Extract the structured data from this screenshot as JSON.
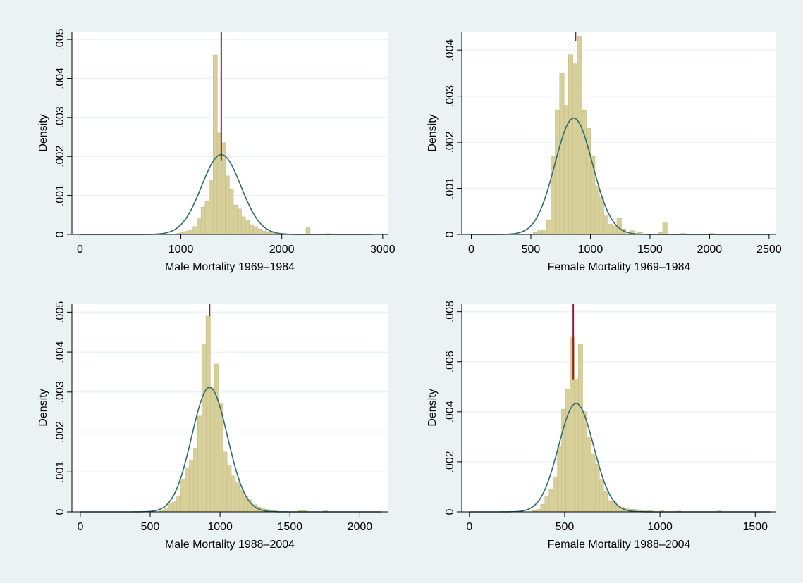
{
  "colors": {
    "outer_background": "#EAF2F3",
    "plot_background": "#FFFFFF",
    "gridline": "#EAF2F3",
    "bar_fill": "#D8D09A",
    "bar_stroke": "#C9C08A",
    "normal_curve": "#2E6B6A",
    "mean_line": "#A0182E"
  },
  "chart_data": [
    {
      "type": "bar",
      "xlabel": "Male Mortality 1969–1984",
      "ylabel": "Density",
      "xlim": [
        -80,
        3050
      ],
      "ylim": [
        0,
        0.0052
      ],
      "xticks": [
        0,
        1000,
        2000,
        3000
      ],
      "xtick_labels": [
        "0",
        "1000",
        "2000",
        "3000"
      ],
      "yticks": [
        0,
        0.001,
        0.002,
        0.003,
        0.004,
        0.005
      ],
      "ytick_labels": [
        "0",
        ".001",
        ".002",
        ".003",
        ".004",
        ".005"
      ],
      "grid": true,
      "bin_width": 40,
      "bins": [
        {
          "x0": 960,
          "value": 3e-05
        },
        {
          "x0": 1000,
          "value": 5e-05
        },
        {
          "x0": 1040,
          "value": 8e-05
        },
        {
          "x0": 1080,
          "value": 0.00012
        },
        {
          "x0": 1120,
          "value": 0.0002
        },
        {
          "x0": 1160,
          "value": 0.0004
        },
        {
          "x0": 1200,
          "value": 0.0007
        },
        {
          "x0": 1240,
          "value": 0.00085
        },
        {
          "x0": 1280,
          "value": 0.0014
        },
        {
          "x0": 1320,
          "value": 0.0046
        },
        {
          "x0": 1360,
          "value": 0.0026
        },
        {
          "x0": 1400,
          "value": 0.00235
        },
        {
          "x0": 1440,
          "value": 0.0015
        },
        {
          "x0": 1480,
          "value": 0.00115
        },
        {
          "x0": 1520,
          "value": 0.00075
        },
        {
          "x0": 1560,
          "value": 0.00065
        },
        {
          "x0": 1600,
          "value": 0.00045
        },
        {
          "x0": 1640,
          "value": 0.00035
        },
        {
          "x0": 1680,
          "value": 0.00025
        },
        {
          "x0": 1720,
          "value": 0.0002
        },
        {
          "x0": 1760,
          "value": 0.00014
        },
        {
          "x0": 1800,
          "value": 9e-05
        },
        {
          "x0": 1840,
          "value": 7e-05
        },
        {
          "x0": 1880,
          "value": 5e-05
        },
        {
          "x0": 1920,
          "value": 4e-05
        },
        {
          "x0": 1960,
          "value": 3e-05
        },
        {
          "x0": 2000,
          "value": 2e-05
        },
        {
          "x0": 2240,
          "value": 0.00017
        },
        {
          "x0": 2440,
          "value": 2e-05
        }
      ],
      "normal_curve": {
        "mean": 1400,
        "sd": 195,
        "x_range": [
          0,
          2900
        ]
      },
      "mean_line": {
        "x": 1400,
        "y_top": 0.0052,
        "y_bottom": 0.0019
      }
    },
    {
      "type": "bar",
      "xlabel": "Female Mortality 1969–1984",
      "ylabel": "Density",
      "xlim": [
        -80,
        2560
      ],
      "ylim": [
        0,
        0.0044
      ],
      "xticks": [
        0,
        500,
        1000,
        1500,
        2000,
        2500
      ],
      "xtick_labels": [
        "0",
        "500",
        "1000",
        "1500",
        "2000",
        "2500"
      ],
      "yticks": [
        0,
        0.001,
        0.002,
        0.003,
        0.004
      ],
      "ytick_labels": [
        "0",
        ".001",
        ".002",
        ".003",
        ".004"
      ],
      "grid": true,
      "bin_width": 37,
      "bins": [
        {
          "x0": 520,
          "value": 4e-05
        },
        {
          "x0": 557,
          "value": 8e-05
        },
        {
          "x0": 594,
          "value": 0.0001
        },
        {
          "x0": 631,
          "value": 0.0003
        },
        {
          "x0": 668,
          "value": 0.0017
        },
        {
          "x0": 705,
          "value": 0.0027
        },
        {
          "x0": 742,
          "value": 0.0035
        },
        {
          "x0": 779,
          "value": 0.0028
        },
        {
          "x0": 816,
          "value": 0.0039
        },
        {
          "x0": 853,
          "value": 0.0037
        },
        {
          "x0": 890,
          "value": 0.0043
        },
        {
          "x0": 927,
          "value": 0.0027
        },
        {
          "x0": 964,
          "value": 0.0023
        },
        {
          "x0": 1001,
          "value": 0.0017
        },
        {
          "x0": 1038,
          "value": 0.00105
        },
        {
          "x0": 1075,
          "value": 0.0008
        },
        {
          "x0": 1112,
          "value": 0.0004
        },
        {
          "x0": 1149,
          "value": 0.00022
        },
        {
          "x0": 1186,
          "value": 0.00018
        },
        {
          "x0": 1223,
          "value": 0.00035
        },
        {
          "x0": 1260,
          "value": 0.00012
        },
        {
          "x0": 1330,
          "value": 8e-05
        },
        {
          "x0": 1400,
          "value": 4e-05
        },
        {
          "x0": 1570,
          "value": 4e-05
        },
        {
          "x0": 1607,
          "value": 0.00025
        },
        {
          "x0": 1760,
          "value": 2e-05
        },
        {
          "x0": 2000,
          "value": 2e-05
        }
      ],
      "normal_curve": {
        "mean": 860,
        "sd": 158,
        "x_range": [
          0,
          2500
        ]
      },
      "mean_line": {
        "x": 875,
        "y_top": 0.0044,
        "y_bottom": 0.0042
      }
    },
    {
      "type": "bar",
      "xlabel": "Male Mortality 1988–2004",
      "ylabel": "Density",
      "xlim": [
        -60,
        2200
      ],
      "ylim": [
        0,
        0.0052
      ],
      "xticks": [
        0,
        500,
        1000,
        1500,
        2000
      ],
      "xtick_labels": [
        "0",
        "500",
        "1000",
        "1500",
        "2000"
      ],
      "yticks": [
        0,
        0.001,
        0.002,
        0.003,
        0.004,
        0.005
      ],
      "ytick_labels": [
        "0",
        ".001",
        ".002",
        ".003",
        ".004",
        ".005"
      ],
      "grid": true,
      "bin_width": 30,
      "bins": [
        {
          "x0": 570,
          "value": 5e-05
        },
        {
          "x0": 600,
          "value": 0.0001
        },
        {
          "x0": 630,
          "value": 0.0002
        },
        {
          "x0": 660,
          "value": 0.00025
        },
        {
          "x0": 690,
          "value": 0.0004
        },
        {
          "x0": 720,
          "value": 0.0008
        },
        {
          "x0": 750,
          "value": 0.0011
        },
        {
          "x0": 780,
          "value": 0.0013
        },
        {
          "x0": 810,
          "value": 0.0016
        },
        {
          "x0": 840,
          "value": 0.0024
        },
        {
          "x0": 870,
          "value": 0.0042
        },
        {
          "x0": 900,
          "value": 0.0049
        },
        {
          "x0": 930,
          "value": 0.0031
        },
        {
          "x0": 960,
          "value": 0.0037
        },
        {
          "x0": 990,
          "value": 0.0027
        },
        {
          "x0": 1020,
          "value": 0.0015
        },
        {
          "x0": 1050,
          "value": 0.00115
        },
        {
          "x0": 1080,
          "value": 0.0009
        },
        {
          "x0": 1110,
          "value": 0.00075
        },
        {
          "x0": 1140,
          "value": 0.00055
        },
        {
          "x0": 1170,
          "value": 0.0004
        },
        {
          "x0": 1200,
          "value": 0.0003
        },
        {
          "x0": 1230,
          "value": 0.00018
        },
        {
          "x0": 1260,
          "value": 0.00012
        },
        {
          "x0": 1290,
          "value": 8e-05
        },
        {
          "x0": 1320,
          "value": 6e-05
        },
        {
          "x0": 1350,
          "value": 4e-05
        },
        {
          "x0": 1380,
          "value": 3e-05
        },
        {
          "x0": 1560,
          "value": 3e-05
        },
        {
          "x0": 1590,
          "value": 3e-05
        },
        {
          "x0": 1740,
          "value": 4e-05
        }
      ],
      "normal_curve": {
        "mean": 925,
        "sd": 128,
        "x_range": [
          0,
          2150
        ]
      },
      "mean_line": {
        "x": 925,
        "y_top": 0.0052,
        "y_bottom": 0.0049
      }
    },
    {
      "type": "bar",
      "xlabel": "Female Mortality 1988–2004",
      "ylabel": "Density",
      "xlim": [
        -40,
        1610
      ],
      "ylim": [
        0,
        0.0083
      ],
      "xticks": [
        0,
        500,
        1000,
        1500
      ],
      "xtick_labels": [
        "0",
        "500",
        "1000",
        "1500"
      ],
      "yticks": [
        0,
        0.002,
        0.004,
        0.006,
        0.008
      ],
      "ytick_labels": [
        "0",
        ".002",
        ".004",
        ".006",
        ".008"
      ],
      "grid": true,
      "bin_width": 22,
      "bins": [
        {
          "x0": 330,
          "value": 5e-05
        },
        {
          "x0": 352,
          "value": 0.0001
        },
        {
          "x0": 374,
          "value": 0.0003
        },
        {
          "x0": 396,
          "value": 0.0006
        },
        {
          "x0": 418,
          "value": 0.0009
        },
        {
          "x0": 440,
          "value": 0.0014
        },
        {
          "x0": 462,
          "value": 0.0026
        },
        {
          "x0": 484,
          "value": 0.0041
        },
        {
          "x0": 506,
          "value": 0.0049
        },
        {
          "x0": 528,
          "value": 0.007
        },
        {
          "x0": 550,
          "value": 0.0053
        },
        {
          "x0": 572,
          "value": 0.0067
        },
        {
          "x0": 594,
          "value": 0.004
        },
        {
          "x0": 616,
          "value": 0.003
        },
        {
          "x0": 638,
          "value": 0.0023
        },
        {
          "x0": 660,
          "value": 0.0019
        },
        {
          "x0": 682,
          "value": 0.0013
        },
        {
          "x0": 704,
          "value": 0.0008
        },
        {
          "x0": 726,
          "value": 0.00045
        },
        {
          "x0": 748,
          "value": 0.0004
        },
        {
          "x0": 770,
          "value": 0.00025
        },
        {
          "x0": 792,
          "value": 0.00018
        },
        {
          "x0": 814,
          "value": 0.00012
        },
        {
          "x0": 836,
          "value": 0.0001
        },
        {
          "x0": 858,
          "value": 0.0001
        },
        {
          "x0": 880,
          "value": 8e-05
        },
        {
          "x0": 902,
          "value": 6e-05
        },
        {
          "x0": 924,
          "value": 5e-05
        },
        {
          "x0": 946,
          "value": 4e-05
        },
        {
          "x0": 1000,
          "value": 4e-05
        },
        {
          "x0": 1088,
          "value": 3e-05
        },
        {
          "x0": 1300,
          "value": 4e-05
        }
      ],
      "normal_curve": {
        "mean": 560,
        "sd": 92,
        "x_range": [
          0,
          1580
        ]
      },
      "mean_line": {
        "x": 545,
        "y_top": 0.0083,
        "y_bottom": 0.0053
      }
    }
  ]
}
